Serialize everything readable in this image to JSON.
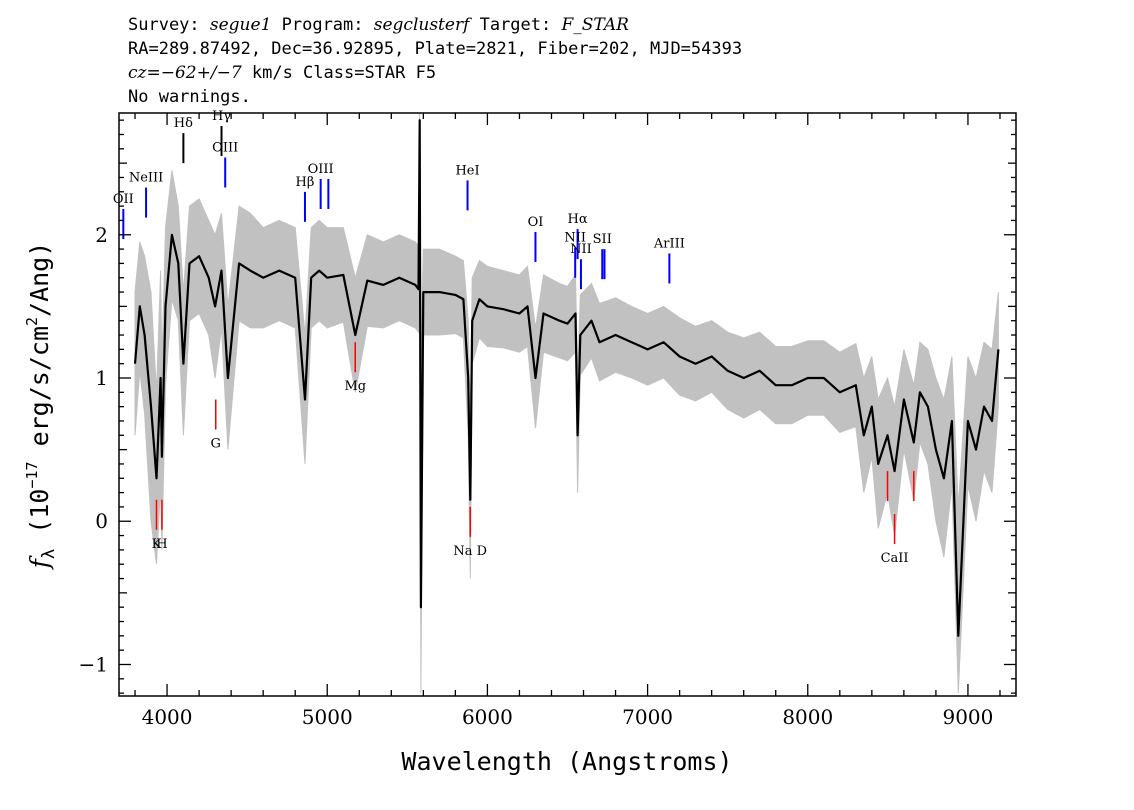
{
  "header": {
    "line1": {
      "survey_label": "Survey: ",
      "survey": "segue1",
      "program_label": " Program: ",
      "program": "segclusterf",
      "target_label": " Target: ",
      "target": "F_STAR"
    },
    "line2": "RA=289.87492, Dec=36.92895, Plate=2821, Fiber=202, MJD=54393",
    "line3": {
      "cz_label": "cz",
      "cz_value": "=−62+/−7",
      "rest": " km/s Class=STAR F5"
    },
    "line4": "No warnings."
  },
  "chart_data": {
    "type": "line",
    "xlabel": "Wavelength (Angstroms)",
    "ylabel": {
      "symbol": "f",
      "subscript": "λ",
      "rest": " (10",
      "exponent": "−17",
      "unit": " erg/s/cm",
      "unit_exp": "2",
      "unit_end": "/Ang)"
    },
    "xlim": [
      3700,
      9300
    ],
    "ylim": [
      -1.22,
      2.85
    ],
    "x_ticks": [
      4000,
      5000,
      6000,
      7000,
      8000,
      9000
    ],
    "y_ticks": [
      {
        "value": -1,
        "label": "−1"
      },
      {
        "value": 0,
        "label": "0"
      },
      {
        "value": 1,
        "label": "1"
      },
      {
        "value": 2,
        "label": "2"
      }
    ],
    "series": [
      {
        "role": "flux",
        "color": "#000000",
        "x": [
          3800,
          3830,
          3860,
          3900,
          3934,
          3960,
          3968,
          3990,
          4030,
          4070,
          4102,
          4140,
          4200,
          4260,
          4300,
          4340,
          4380,
          4450,
          4520,
          4600,
          4700,
          4800,
          4861,
          4900,
          4950,
          5000,
          5100,
          5175,
          5250,
          5350,
          5450,
          5550,
          5570,
          5577,
          5585,
          5600,
          5700,
          5800,
          5850,
          5880,
          5893,
          5905,
          5950,
          6000,
          6100,
          6200,
          6250,
          6300,
          6350,
          6450,
          6500,
          6550,
          6563,
          6580,
          6650,
          6700,
          6800,
          6900,
          7000,
          7100,
          7200,
          7300,
          7400,
          7500,
          7600,
          7700,
          7800,
          7900,
          8000,
          8100,
          8200,
          8300,
          8350,
          8400,
          8440,
          8498,
          8542,
          8600,
          8662,
          8700,
          8750,
          8800,
          8850,
          8900,
          8940,
          9000,
          9050,
          9100,
          9150,
          9190
        ],
        "y": [
          1.1,
          1.5,
          1.3,
          0.8,
          0.3,
          1.0,
          0.45,
          1.5,
          2.0,
          1.8,
          1.1,
          1.8,
          1.85,
          1.7,
          1.5,
          1.75,
          1.0,
          1.8,
          1.75,
          1.7,
          1.75,
          1.7,
          0.85,
          1.7,
          1.75,
          1.7,
          1.72,
          1.3,
          1.68,
          1.65,
          1.7,
          1.65,
          1.62,
          2.8,
          -0.6,
          1.6,
          1.6,
          1.58,
          1.55,
          1.0,
          0.15,
          1.4,
          1.55,
          1.5,
          1.48,
          1.45,
          1.5,
          1.0,
          1.45,
          1.4,
          1.38,
          1.45,
          0.6,
          1.3,
          1.4,
          1.25,
          1.3,
          1.25,
          1.2,
          1.25,
          1.15,
          1.1,
          1.15,
          1.05,
          1.0,
          1.05,
          0.95,
          0.95,
          1.0,
          1.0,
          0.9,
          0.95,
          0.6,
          0.8,
          0.4,
          0.6,
          0.35,
          0.85,
          0.55,
          0.9,
          0.8,
          0.5,
          0.3,
          0.7,
          -0.8,
          0.7,
          0.5,
          0.8,
          0.7,
          1.2
        ]
      },
      {
        "role": "uncertainty",
        "color": "#bbbbbb",
        "upper": [
          1.6,
          1.95,
          1.85,
          1.6,
          0.9,
          1.75,
          1.1,
          2.05,
          2.45,
          2.2,
          1.6,
          2.2,
          2.25,
          2.1,
          2.0,
          2.15,
          1.5,
          2.2,
          2.15,
          2.05,
          2.1,
          2.05,
          1.3,
          2.05,
          2.1,
          2.05,
          2.05,
          1.7,
          2.0,
          1.95,
          2.0,
          1.95,
          1.92,
          2.85,
          1.1,
          1.9,
          1.9,
          1.85,
          1.82,
          1.4,
          0.7,
          1.7,
          1.82,
          1.78,
          1.75,
          1.72,
          1.78,
          1.35,
          1.72,
          1.66,
          1.64,
          1.72,
          1.0,
          1.58,
          1.66,
          1.52,
          1.56,
          1.5,
          1.45,
          1.5,
          1.42,
          1.36,
          1.4,
          1.32,
          1.28,
          1.32,
          1.22,
          1.22,
          1.26,
          1.26,
          1.18,
          1.24,
          1.0,
          1.15,
          0.85,
          1.0,
          0.8,
          1.2,
          0.95,
          1.25,
          1.2,
          1.0,
          0.85,
          1.15,
          0.1,
          1.15,
          1.0,
          1.25,
          1.2,
          1.6
        ],
        "lower": [
          0.6,
          1.05,
          0.75,
          0.0,
          -0.3,
          0.25,
          -0.2,
          0.95,
          1.55,
          1.4,
          0.6,
          1.4,
          1.45,
          1.3,
          1.0,
          1.35,
          0.5,
          1.4,
          1.35,
          1.35,
          1.4,
          1.35,
          0.4,
          1.35,
          1.4,
          1.35,
          1.39,
          0.9,
          1.36,
          1.35,
          1.4,
          1.35,
          1.32,
          1.6,
          -1.2,
          1.3,
          1.3,
          1.31,
          1.28,
          0.6,
          -0.4,
          1.1,
          1.28,
          1.22,
          1.21,
          1.18,
          1.22,
          0.65,
          1.18,
          1.14,
          1.12,
          1.18,
          0.2,
          1.02,
          1.14,
          0.98,
          1.04,
          1.0,
          0.95,
          1.0,
          0.88,
          0.84,
          0.9,
          0.78,
          0.72,
          0.78,
          0.68,
          0.68,
          0.74,
          0.74,
          0.62,
          0.66,
          0.2,
          0.45,
          -0.05,
          0.2,
          -0.1,
          0.5,
          0.15,
          0.55,
          0.4,
          0.0,
          -0.25,
          0.25,
          -1.2,
          0.25,
          0.0,
          0.35,
          0.2,
          0.8
        ]
      }
    ],
    "lines": [
      {
        "label": "OII",
        "x": 3727,
        "y": 1.97,
        "color": "#0000ff",
        "side": "above"
      },
      {
        "label": "NeIII",
        "x": 3869,
        "y": 2.12,
        "color": "#0000ff",
        "side": "above"
      },
      {
        "label": "Hδ",
        "x": 4102,
        "y": 2.5,
        "color": "#000000",
        "side": "above"
      },
      {
        "label": "Hγ",
        "x": 4340,
        "y": 2.55,
        "color": "#000000",
        "side": "above"
      },
      {
        "label": "OIII",
        "x": 4363,
        "y": 2.33,
        "color": "#0000ff",
        "side": "above"
      },
      {
        "label": "Hβ",
        "x": 4861,
        "y": 2.09,
        "color": "#0000ff",
        "side": "above"
      },
      {
        "label": "OIII",
        "x": 4959,
        "y": 2.18,
        "color": "#0000ff",
        "side": "above"
      },
      {
        "label": "",
        "x": 5007,
        "y": 2.18,
        "color": "#0000ff",
        "side": "above"
      },
      {
        "label": "HeI",
        "x": 5876,
        "y": 2.17,
        "color": "#0000ff",
        "side": "above"
      },
      {
        "label": "OI",
        "x": 6300,
        "y": 1.81,
        "color": "#0000ff",
        "side": "above"
      },
      {
        "label": "NII",
        "x": 6548,
        "y": 1.7,
        "color": "#0000ff",
        "side": "above"
      },
      {
        "label": "Hα",
        "x": 6563,
        "y": 1.83,
        "color": "#0000ff",
        "side": "above"
      },
      {
        "label": "NII",
        "x": 6584,
        "y": 1.62,
        "color": "#0000ff",
        "side": "above"
      },
      {
        "label": "SII",
        "x": 6717,
        "y": 1.69,
        "color": "#0000ff",
        "side": "above"
      },
      {
        "label": "",
        "x": 6731,
        "y": 1.69,
        "color": "#0000ff",
        "side": "above"
      },
      {
        "label": "ArIII",
        "x": 7136,
        "y": 1.66,
        "color": "#0000ff",
        "side": "above"
      },
      {
        "label": "K",
        "x": 3934,
        "y": 0.15,
        "color": "#ff0000",
        "side": "below"
      },
      {
        "label": "H",
        "x": 3968,
        "y": 0.15,
        "color": "#ff0000",
        "side": "below"
      },
      {
        "label": "G",
        "x": 4304,
        "y": 0.85,
        "color": "#ff0000",
        "side": "below"
      },
      {
        "label": "Mg",
        "x": 5175,
        "y": 1.25,
        "color": "#ff0000",
        "side": "below"
      },
      {
        "label": "Na  D",
        "x": 5893,
        "y": 0.1,
        "color": "#ff0000",
        "side": "below"
      },
      {
        "label": "",
        "x": 8498,
        "y": 0.35,
        "color": "#ff0000",
        "side": "below"
      },
      {
        "label": "CaII",
        "x": 8542,
        "y": 0.05,
        "color": "#ff0000",
        "side": "below"
      },
      {
        "label": "",
        "x": 8662,
        "y": 0.35,
        "color": "#ff0000",
        "side": "below"
      }
    ]
  }
}
